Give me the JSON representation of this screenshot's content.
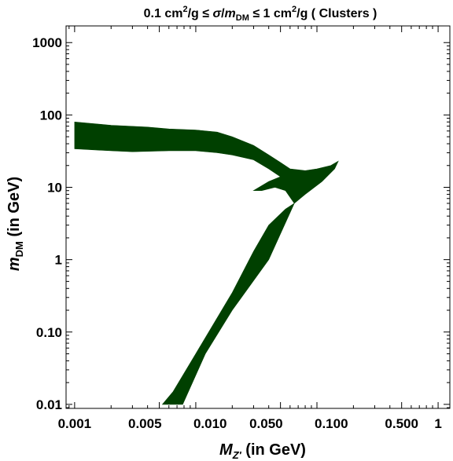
{
  "chart_data": {
    "type": "area",
    "title_parts": {
      "lower": "0.1 cm",
      "lower_exp": "2",
      "unit_a": "/g ≤ ",
      "sigma": "σ",
      "slash": "/",
      "m": "m",
      "m_sub": "DM",
      "le": " ≤ 1 cm",
      "upper_exp": "2",
      "tail": "/g ( Clusters )"
    },
    "xlabel_parts": {
      "symbol": "M",
      "sub": "Z'",
      "unit": " (in GeV)"
    },
    "ylabel_parts": {
      "symbol": "m",
      "sub": "DM",
      "unit": " (in GeV)"
    },
    "x_scale": "log",
    "y_scale": "log",
    "xlim": [
      0.00085,
      1.25
    ],
    "ylim": [
      0.0088,
      1700
    ],
    "x_ticks": [
      {
        "value": 0.001,
        "label": "0.001"
      },
      {
        "value": 0.005,
        "label": "0.005"
      },
      {
        "value": 0.01,
        "label": "0.010"
      },
      {
        "value": 0.05,
        "label": "0.050"
      },
      {
        "value": 0.1,
        "label": "0.100"
      },
      {
        "value": 0.5,
        "label": "0.500"
      },
      {
        "value": 1,
        "label": "1"
      }
    ],
    "y_ticks": [
      {
        "value": 0.01,
        "label": "0.01"
      },
      {
        "value": 0.1,
        "label": "0.10"
      },
      {
        "value": 1,
        "label": "1"
      },
      {
        "value": 10,
        "label": "10"
      },
      {
        "value": 100,
        "label": "100"
      },
      {
        "value": 1000,
        "label": "1000"
      }
    ],
    "grid": false,
    "fill_color": "#004000",
    "region_upper_branch": [
      [
        0.001,
        80
      ],
      [
        0.002,
        72
      ],
      [
        0.004,
        68
      ],
      [
        0.006,
        64
      ],
      [
        0.01,
        62
      ],
      [
        0.015,
        58
      ],
      [
        0.02,
        50
      ],
      [
        0.03,
        38
      ],
      [
        0.04,
        28
      ],
      [
        0.05,
        22
      ],
      [
        0.06,
        18
      ],
      [
        0.08,
        17
      ],
      [
        0.1,
        18
      ],
      [
        0.13,
        20
      ],
      [
        0.15,
        23
      ],
      [
        0.14,
        18
      ],
      [
        0.11,
        12
      ],
      [
        0.08,
        8
      ],
      [
        0.065,
        6
      ],
      [
        0.055,
        9
      ],
      [
        0.045,
        10
      ],
      [
        0.035,
        9
      ],
      [
        0.03,
        9
      ],
      [
        0.04,
        12
      ],
      [
        0.05,
        14
      ],
      [
        0.04,
        18
      ],
      [
        0.03,
        24
      ],
      [
        0.02,
        28
      ],
      [
        0.015,
        30
      ],
      [
        0.01,
        32
      ],
      [
        0.006,
        32
      ],
      [
        0.003,
        31
      ],
      [
        0.002,
        32
      ],
      [
        0.001,
        34
      ]
    ],
    "region_lower_branch": [
      [
        0.0053,
        0.01
      ],
      [
        0.0078,
        0.01
      ],
      [
        0.012,
        0.05
      ],
      [
        0.02,
        0.2
      ],
      [
        0.04,
        1
      ],
      [
        0.065,
        6
      ],
      [
        0.055,
        5
      ],
      [
        0.04,
        3
      ],
      [
        0.03,
        1.3
      ],
      [
        0.02,
        0.35
      ],
      [
        0.01,
        0.05
      ],
      [
        0.0065,
        0.015
      ],
      [
        0.0053,
        0.01
      ]
    ]
  }
}
